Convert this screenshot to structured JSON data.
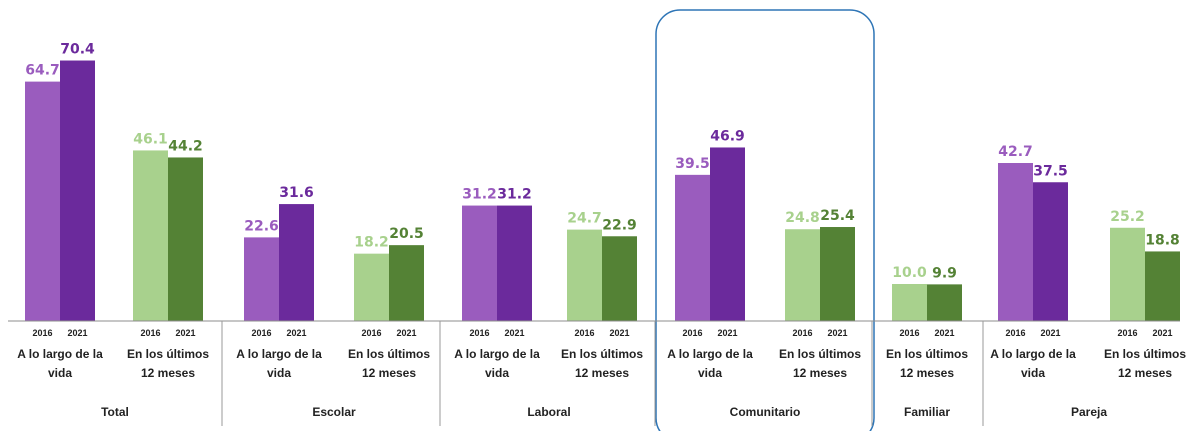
{
  "chart_data": {
    "type": "bar",
    "x_labels": [
      "2016",
      "2021"
    ],
    "colors": {
      "purple_2016": "#9A5CBE",
      "purple_2021": "#6B2A9C",
      "green_2016": "#A8D18D",
      "green_2021": "#548235",
      "highlight_border": "#2E75B6"
    },
    "highlighted_group": "Comunitario",
    "groups": [
      {
        "name": "Total",
        "subgroups": [
          {
            "label": [
              "A lo largo de la",
              "vida"
            ],
            "palette": "purple",
            "values": [
              64.7,
              70.4
            ],
            "value_labels": [
              "64.7",
              "70.4"
            ]
          },
          {
            "label": [
              "En los últimos",
              "12 meses"
            ],
            "palette": "green",
            "values": [
              46.1,
              44.2
            ],
            "value_labels": [
              "46.1",
              "44.2"
            ]
          }
        ]
      },
      {
        "name": "Escolar",
        "subgroups": [
          {
            "label": [
              "A lo largo de la",
              "vida"
            ],
            "palette": "purple",
            "values": [
              22.6,
              31.6
            ],
            "value_labels": [
              "22.6",
              "31.6"
            ]
          },
          {
            "label": [
              "En los últimos",
              "12 meses"
            ],
            "palette": "green",
            "values": [
              18.2,
              20.5
            ],
            "value_labels": [
              "18.2",
              "20.5"
            ]
          }
        ]
      },
      {
        "name": "Laboral",
        "subgroups": [
          {
            "label": [
              "A lo largo de la",
              "vida"
            ],
            "palette": "purple",
            "values": [
              31.2,
              31.2
            ],
            "value_labels": [
              "31.2",
              "31.2"
            ]
          },
          {
            "label": [
              "En los últimos",
              "12 meses"
            ],
            "palette": "green",
            "values": [
              24.7,
              22.9
            ],
            "value_labels": [
              "24.7",
              "22.9"
            ]
          }
        ]
      },
      {
        "name": "Comunitario",
        "subgroups": [
          {
            "label": [
              "A lo largo de la",
              "vida"
            ],
            "palette": "purple",
            "values": [
              39.5,
              46.9
            ],
            "value_labels": [
              "39.5",
              "46.9"
            ]
          },
          {
            "label": [
              "En los últimos",
              "12 meses"
            ],
            "palette": "green",
            "values": [
              24.8,
              25.4
            ],
            "value_labels": [
              "24.8",
              "25.4"
            ]
          }
        ]
      },
      {
        "name": "Familiar",
        "subgroups": [
          {
            "label": [
              "En los últimos",
              "12 meses"
            ],
            "palette": "green",
            "values": [
              10.0,
              9.9
            ],
            "value_labels": [
              "10.0",
              "9.9"
            ]
          }
        ]
      },
      {
        "name": "Pareja",
        "subgroups": [
          {
            "label": [
              "A lo largo de la",
              "vida"
            ],
            "palette": "purple",
            "values": [
              42.7,
              37.5
            ],
            "value_labels": [
              "42.7",
              "37.5"
            ]
          },
          {
            "label": [
              "En los últimos",
              "12 meses"
            ],
            "palette": "green",
            "values": [
              25.2,
              18.8
            ],
            "value_labels": [
              "25.2",
              "18.8"
            ]
          }
        ]
      }
    ]
  }
}
